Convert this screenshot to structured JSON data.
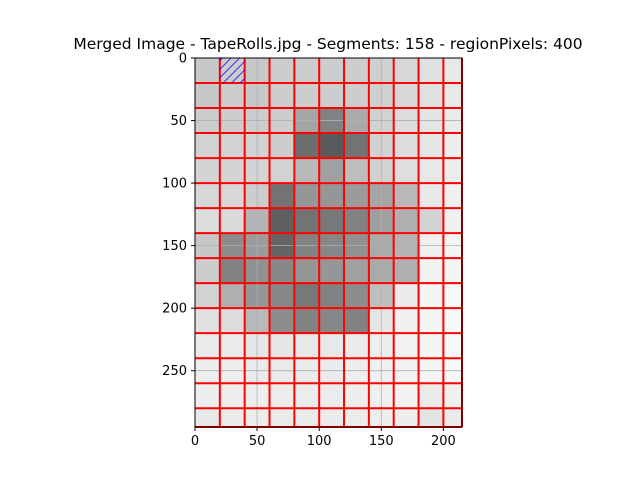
{
  "chart_data": {
    "type": "heatmap",
    "title": "Merged Image - TapeRolls.jpg - Segments: 158 - regionPixels: 400",
    "xlabel": "",
    "ylabel": "",
    "xlim": [
      0,
      215
    ],
    "ylim": [
      295,
      0
    ],
    "x_ticks": [
      0,
      50,
      100,
      150,
      200
    ],
    "y_ticks": [
      0,
      50,
      100,
      150,
      200,
      250
    ],
    "x_tick_labels": [
      "0",
      "50",
      "100",
      "150",
      "200"
    ],
    "y_tick_labels": [
      "0",
      "50",
      "100",
      "150",
      "200",
      "250"
    ],
    "grid": true,
    "column_edges": [
      0,
      20,
      40,
      60,
      80,
      100,
      120,
      140,
      160,
      180,
      200,
      215
    ],
    "row_edges": [
      0,
      20,
      40,
      60,
      80,
      100,
      120,
      140,
      160,
      180,
      200,
      220,
      240,
      260,
      280,
      295
    ],
    "cell_gray_levels": [
      [
        200,
        205,
        200,
        205,
        205,
        205,
        205,
        208,
        215,
        225,
        232
      ],
      [
        200,
        205,
        200,
        205,
        205,
        205,
        205,
        208,
        215,
        225,
        232
      ],
      [
        205,
        205,
        205,
        205,
        165,
        130,
        170,
        210,
        220,
        228,
        235
      ],
      [
        210,
        210,
        210,
        205,
        110,
        90,
        115,
        210,
        220,
        230,
        238
      ],
      [
        212,
        212,
        212,
        210,
        185,
        160,
        190,
        210,
        222,
        232,
        238
      ],
      [
        215,
        215,
        205,
        115,
        150,
        150,
        155,
        165,
        185,
        232,
        240
      ],
      [
        220,
        218,
        180,
        95,
        115,
        120,
        130,
        160,
        175,
        212,
        240
      ],
      [
        200,
        140,
        155,
        100,
        130,
        135,
        145,
        170,
        180,
        240,
        245
      ],
      [
        205,
        130,
        145,
        135,
        150,
        150,
        160,
        170,
        175,
        242,
        245
      ],
      [
        210,
        175,
        150,
        135,
        120,
        130,
        140,
        190,
        235,
        245,
        248
      ],
      [
        225,
        220,
        185,
        140,
        130,
        135,
        130,
        230,
        240,
        245,
        248
      ],
      [
        235,
        235,
        230,
        230,
        232,
        232,
        235,
        238,
        242,
        245,
        248
      ],
      [
        238,
        238,
        235,
        234,
        235,
        235,
        238,
        240,
        242,
        245,
        248
      ],
      [
        238,
        238,
        238,
        236,
        236,
        236,
        238,
        240,
        242,
        235,
        240
      ],
      [
        232,
        235,
        236,
        235,
        235,
        235,
        236,
        238,
        238,
        228,
        235
      ]
    ],
    "highlighted_cell": {
      "column": 1,
      "row": 0,
      "hatch_color": "#0000ff"
    },
    "segment_border_color": "#ff0000"
  }
}
